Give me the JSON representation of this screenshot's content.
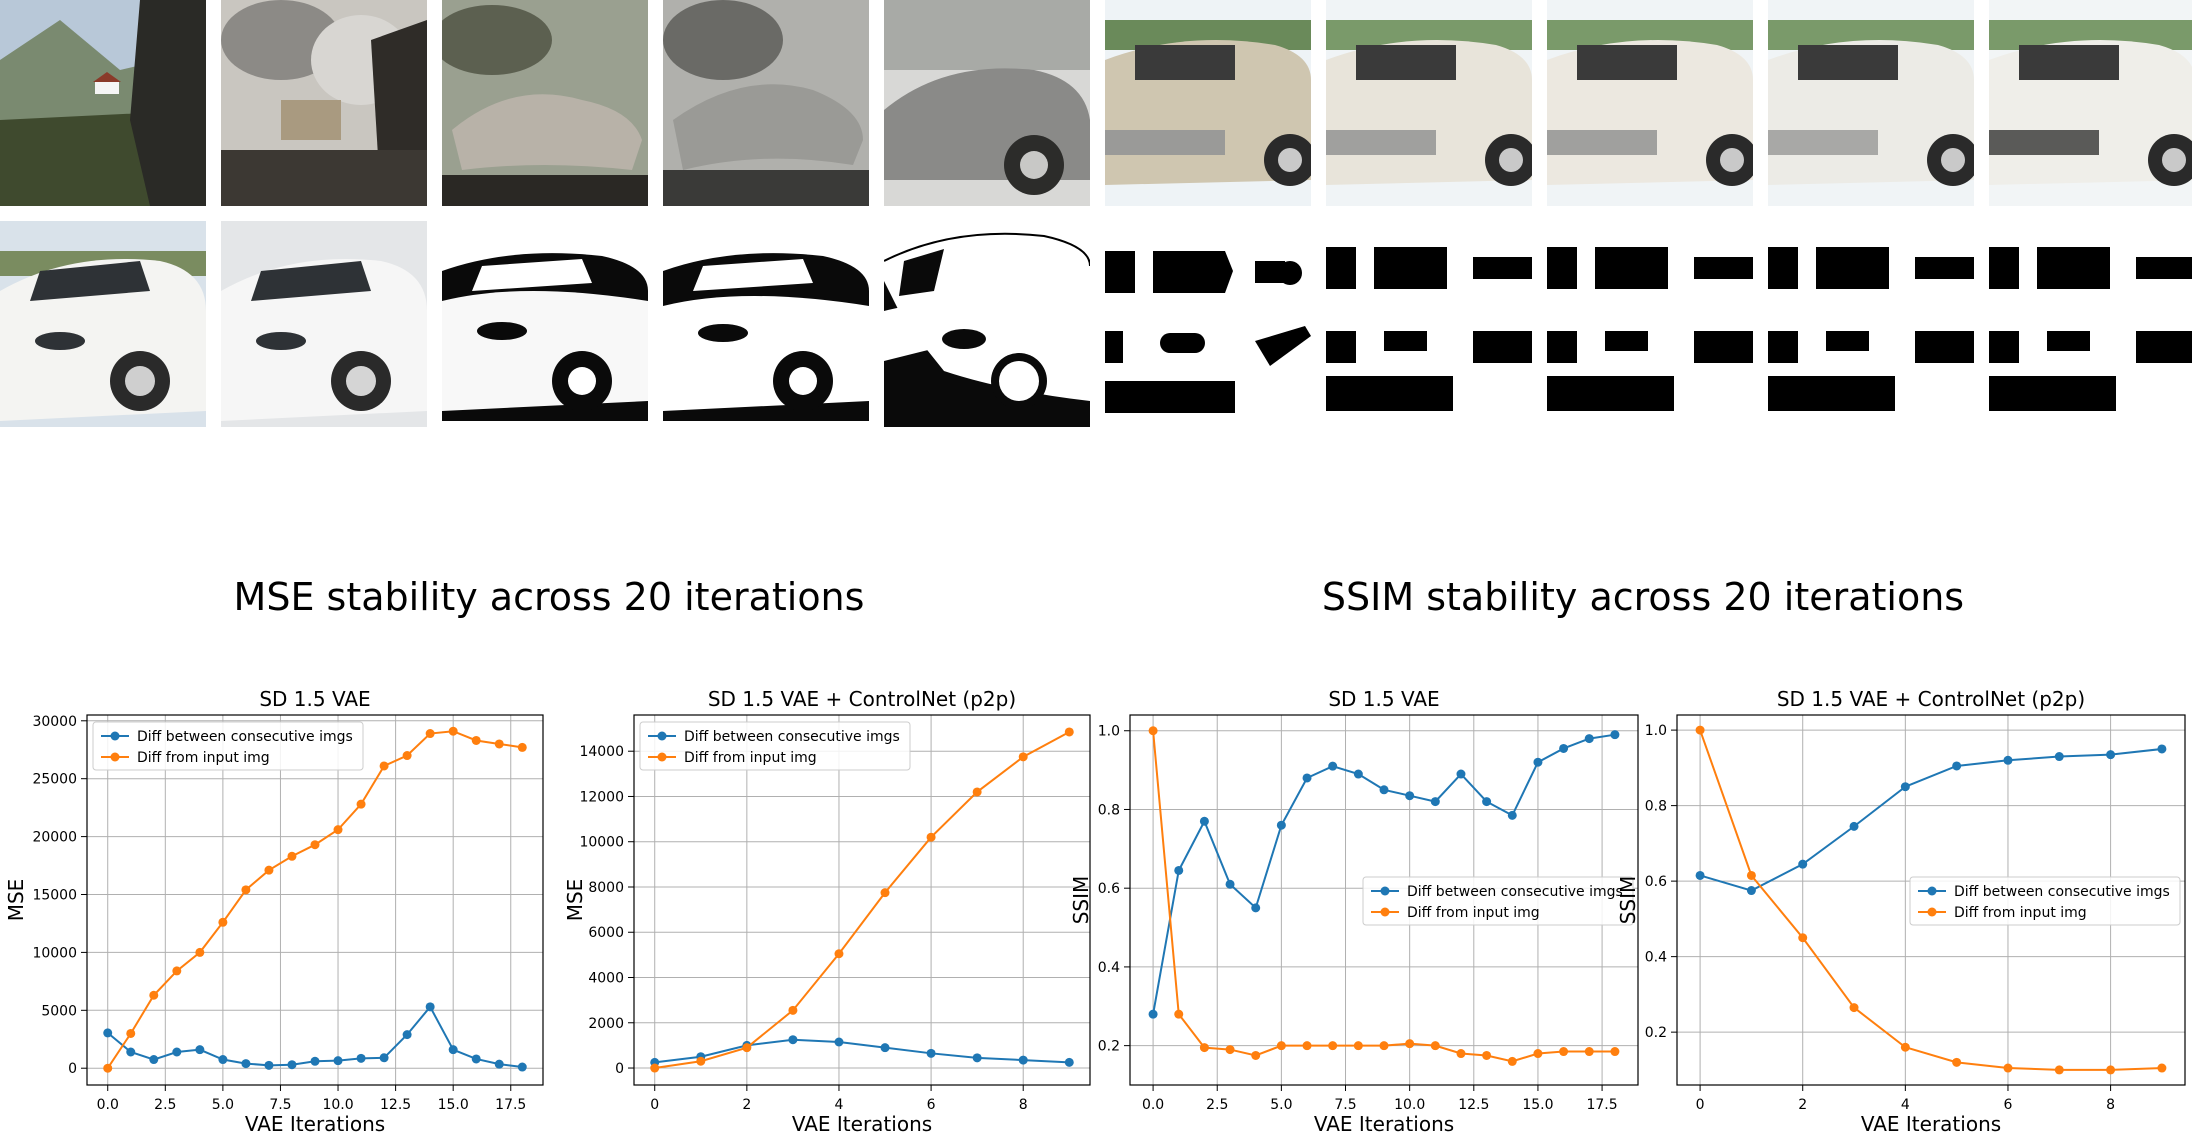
{
  "image_strips": {
    "row1_tiles": [
      "landscape-photo",
      "smoke-scene",
      "distorted-car",
      "distorted-car-gray",
      "silver-car",
      "beige-car",
      "white-car",
      "white-car",
      "white-car",
      "white-car"
    ],
    "row2_tiles": [
      "white-car-photo",
      "white-car-smooth",
      "white-car-posterized",
      "white-car-posterized",
      "car-line-drawing",
      "black-blocks",
      "black-blocks",
      "black-blocks",
      "black-blocks",
      "black-blocks"
    ]
  },
  "headings": {
    "mse": "MSE stability across 20 iterations",
    "ssim": "SSIM stability across 20 iterations"
  },
  "colors": {
    "series1": "#1f77b4",
    "series2": "#ff7f0e",
    "grid": "#b0b0b0"
  },
  "chart_data": [
    {
      "type": "line",
      "title": "SD 1.5 VAE",
      "xlabel": "VAE Iterations",
      "ylabel": "MSE",
      "xlim": [
        -0.9,
        18.9
      ],
      "ylim": [
        -1450,
        30500
      ],
      "xticks": [
        0,
        2.5,
        5,
        7.5,
        10,
        12.5,
        15,
        17.5
      ],
      "xtick_labels": [
        "0.0",
        "2.5",
        "5.0",
        "7.5",
        "10.0",
        "12.5",
        "15.0",
        "17.5"
      ],
      "yticks": [
        0,
        5000,
        10000,
        15000,
        20000,
        25000,
        30000
      ],
      "ytick_labels": [
        "0",
        "5000",
        "10000",
        "15000",
        "20000",
        "25000",
        "30000"
      ],
      "legend": "upper-left",
      "x": [
        0,
        1,
        2,
        3,
        4,
        5,
        6,
        7,
        8,
        9,
        10,
        11,
        12,
        13,
        14,
        15,
        16,
        17,
        18
      ],
      "series": [
        {
          "name": "Diff between consecutive imgs",
          "color": "#1f77b4",
          "values": [
            3050,
            1400,
            750,
            1400,
            1600,
            750,
            400,
            250,
            300,
            600,
            650,
            850,
            900,
            2900,
            5300,
            1600,
            800,
            350,
            100
          ]
        },
        {
          "name": "Diff from input img",
          "color": "#ff7f0e",
          "values": [
            0,
            3000,
            6300,
            8400,
            10000,
            12600,
            15400,
            17100,
            18300,
            19300,
            20600,
            22800,
            26100,
            27000,
            28900,
            29100,
            28300,
            28000,
            27700
          ]
        }
      ]
    },
    {
      "type": "line",
      "title": "SD 1.5 VAE + ControlNet (p2p)",
      "xlabel": "VAE Iterations",
      "ylabel": "MSE",
      "xlim": [
        -0.45,
        9.45
      ],
      "ylim": [
        -750,
        15600
      ],
      "xticks": [
        0,
        2,
        4,
        6,
        8
      ],
      "xtick_labels": [
        "0",
        "2",
        "4",
        "6",
        "8"
      ],
      "yticks": [
        0,
        2000,
        4000,
        6000,
        8000,
        10000,
        12000,
        14000
      ],
      "ytick_labels": [
        "0",
        "2000",
        "4000",
        "6000",
        "8000",
        "10000",
        "12000",
        "14000"
      ],
      "legend": "upper-left",
      "x": [
        0,
        1,
        2,
        3,
        4,
        5,
        6,
        7,
        8,
        9
      ],
      "series": [
        {
          "name": "Diff between consecutive imgs",
          "color": "#1f77b4",
          "values": [
            250,
            500,
            1000,
            1250,
            1150,
            900,
            650,
            450,
            350,
            250
          ]
        },
        {
          "name": "Diff from input img",
          "color": "#ff7f0e",
          "values": [
            0,
            300,
            900,
            2550,
            5050,
            7750,
            10200,
            12200,
            13750,
            14850
          ]
        }
      ]
    },
    {
      "type": "line",
      "title": "SD 1.5 VAE",
      "xlabel": "VAE Iterations",
      "ylabel": "SSIM",
      "xlim": [
        -0.9,
        18.9
      ],
      "ylim": [
        0.1,
        1.04
      ],
      "xticks": [
        0,
        2.5,
        5,
        7.5,
        10,
        12.5,
        15,
        17.5
      ],
      "xtick_labels": [
        "0.0",
        "2.5",
        "5.0",
        "7.5",
        "10.0",
        "12.5",
        "15.0",
        "17.5"
      ],
      "yticks": [
        0.2,
        0.4,
        0.6,
        0.8,
        1.0
      ],
      "ytick_labels": [
        "0.2",
        "0.4",
        "0.6",
        "0.8",
        "1.0"
      ],
      "legend": "center-right",
      "x": [
        0,
        1,
        2,
        3,
        4,
        5,
        6,
        7,
        8,
        9,
        10,
        11,
        12,
        13,
        14,
        15,
        16,
        17,
        18
      ],
      "series": [
        {
          "name": "Diff between consecutive imgs",
          "color": "#1f77b4",
          "values": [
            0.28,
            0.645,
            0.77,
            0.61,
            0.55,
            0.76,
            0.88,
            0.91,
            0.89,
            0.85,
            0.835,
            0.82,
            0.89,
            0.82,
            0.785,
            0.92,
            0.955,
            0.98,
            0.99
          ]
        },
        {
          "name": "Diff from input img",
          "color": "#ff7f0e",
          "values": [
            1.0,
            0.28,
            0.195,
            0.19,
            0.175,
            0.2,
            0.2,
            0.2,
            0.2,
            0.2,
            0.205,
            0.2,
            0.18,
            0.175,
            0.16,
            0.18,
            0.185,
            0.185,
            0.185
          ]
        }
      ]
    },
    {
      "type": "line",
      "title": "SD 1.5 VAE + ControlNet (p2p)",
      "xlabel": "VAE Iterations",
      "ylabel": "SSIM",
      "xlim": [
        -0.45,
        9.45
      ],
      "ylim": [
        0.06,
        1.04
      ],
      "xticks": [
        0,
        2,
        4,
        6,
        8
      ],
      "xtick_labels": [
        "0",
        "2",
        "4",
        "6",
        "8"
      ],
      "yticks": [
        0.2,
        0.4,
        0.6,
        0.8,
        1.0
      ],
      "ytick_labels": [
        "0.2",
        "0.4",
        "0.6",
        "0.8",
        "1.0"
      ],
      "legend": "center-right",
      "x": [
        0,
        1,
        2,
        3,
        4,
        5,
        6,
        7,
        8,
        9
      ],
      "series": [
        {
          "name": "Diff between consecutive imgs",
          "color": "#1f77b4",
          "values": [
            0.615,
            0.575,
            0.645,
            0.745,
            0.85,
            0.905,
            0.92,
            0.93,
            0.935,
            0.95
          ]
        },
        {
          "name": "Diff from input img",
          "color": "#ff7f0e",
          "values": [
            1.0,
            0.615,
            0.45,
            0.265,
            0.16,
            0.12,
            0.105,
            0.1,
            0.1,
            0.105
          ]
        }
      ]
    }
  ]
}
